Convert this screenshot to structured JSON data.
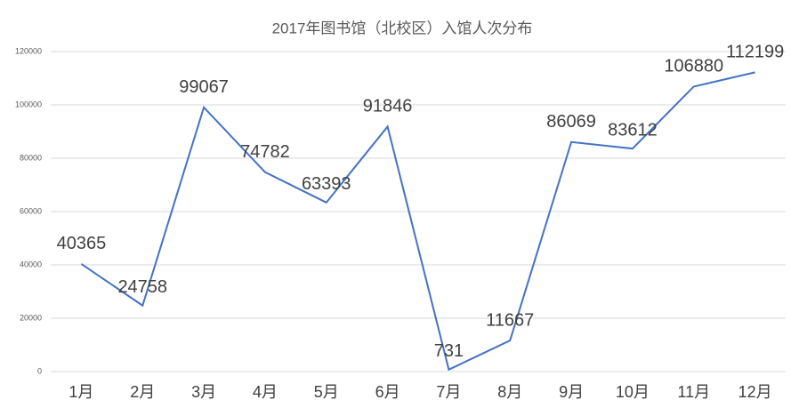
{
  "chart_data": {
    "type": "line",
    "title": "2017年图书馆（北校区）入馆人次分布",
    "categories": [
      "1月",
      "2月",
      "3月",
      "4月",
      "5月",
      "6月",
      "7月",
      "8月",
      "9月",
      "10月",
      "11月",
      "12月"
    ],
    "series": [
      {
        "name": "入馆人次",
        "color": "#4472c4",
        "values": [
          40365,
          24758,
          99067,
          74782,
          63393,
          91846,
          731,
          11667,
          86069,
          83612,
          106880,
          112199
        ]
      }
    ],
    "ylim": [
      0,
      120000
    ],
    "yticks": [
      0,
      20000,
      40000,
      60000,
      80000,
      100000,
      120000
    ],
    "grid": true
  }
}
